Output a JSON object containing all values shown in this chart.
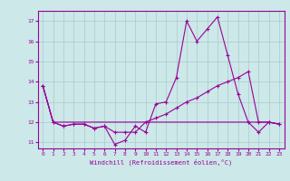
{
  "xlabel": "Windchill (Refroidissement éolien,°C)",
  "ylabel": "",
  "background_color": "#cce8e8",
  "line_color": "#990099",
  "grid_color": "#aacaca",
  "x_values": [
    0,
    1,
    2,
    3,
    4,
    5,
    6,
    7,
    8,
    9,
    10,
    11,
    12,
    13,
    14,
    15,
    16,
    17,
    18,
    19,
    20,
    21,
    22,
    23
  ],
  "line1": [
    13.8,
    12.0,
    11.8,
    11.9,
    11.9,
    11.7,
    11.8,
    10.9,
    11.1,
    11.8,
    11.5,
    12.9,
    13.0,
    14.2,
    17.0,
    16.0,
    16.6,
    17.2,
    15.3,
    13.4,
    12.0,
    11.5,
    12.0,
    11.9
  ],
  "line2": [
    13.8,
    12.0,
    11.8,
    11.9,
    11.9,
    11.7,
    11.8,
    11.5,
    11.5,
    11.5,
    12.0,
    12.2,
    12.4,
    12.7,
    13.0,
    13.2,
    13.5,
    13.8,
    14.0,
    14.2,
    14.5,
    12.0,
    12.0,
    11.9
  ],
  "line3": [
    13.8,
    12.0,
    12.0,
    12.0,
    12.0,
    12.0,
    12.0,
    12.0,
    12.0,
    12.0,
    12.0,
    12.0,
    12.0,
    12.0,
    12.0,
    12.0,
    12.0,
    12.0,
    12.0,
    12.0,
    12.0,
    12.0,
    12.0,
    11.9
  ],
  "ylim": [
    10.7,
    17.5
  ],
  "xlim": [
    -0.5,
    23.5
  ],
  "yticks": [
    11,
    12,
    13,
    14,
    15,
    16,
    17
  ],
  "xticks": [
    0,
    1,
    2,
    3,
    4,
    5,
    6,
    7,
    8,
    9,
    10,
    11,
    12,
    13,
    14,
    15,
    16,
    17,
    18,
    19,
    20,
    21,
    22,
    23
  ]
}
